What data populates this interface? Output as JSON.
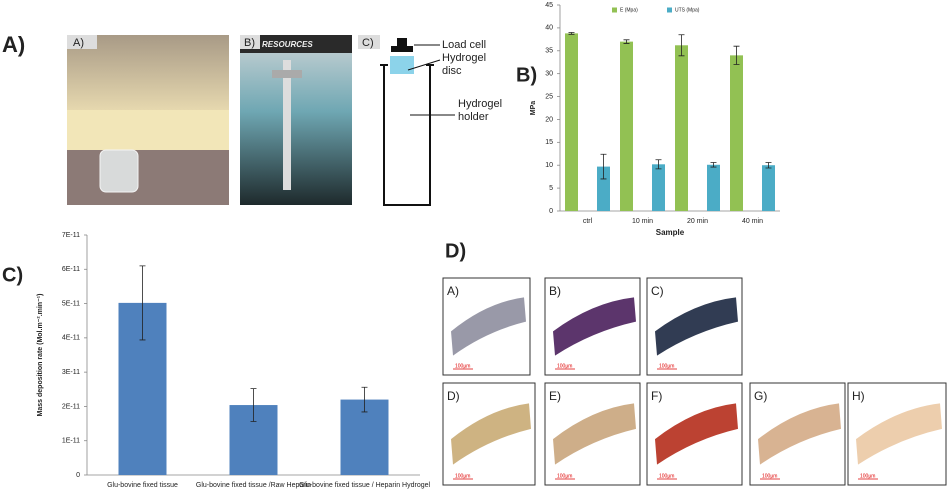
{
  "panels": [
    "A)",
    "B)",
    "C)",
    "D)"
  ],
  "photos": {
    "labels": [
      "A)",
      "B)",
      "C)"
    ],
    "banner": "RESOURCES"
  },
  "schematic": {
    "load_cell": "Load cell",
    "disc": [
      "Hydrogel",
      "disc"
    ],
    "holder": [
      "Hydrogel",
      "holder"
    ]
  },
  "micrographs": [
    {
      "label": "A)",
      "scale": "100µm"
    },
    {
      "label": "B)",
      "scale": "100µm"
    },
    {
      "label": "C)",
      "scale": "100µm"
    },
    {
      "label": "D)",
      "scale": "100µm"
    },
    {
      "label": "E)",
      "scale": "100µm"
    },
    {
      "label": "F)",
      "scale": "100µm"
    },
    {
      "label": "G)",
      "scale": "100µm"
    },
    {
      "label": "H)",
      "scale": "100µm"
    }
  ],
  "chart_data": [
    {
      "type": "bar",
      "ylabel": "MPa",
      "xlabel": "Sample",
      "categories": [
        "ctrl",
        "10 min",
        "20 min",
        "40 min"
      ],
      "series": [
        {
          "name": "E (Mpa)",
          "color": "#92c153",
          "values": [
            38.8,
            37,
            36.2,
            34
          ],
          "errors": [
            0.2,
            0.4,
            2.3,
            2
          ]
        },
        {
          "name": "UTS (Mpa)",
          "color": "#4bacc6",
          "values": [
            9.7,
            10.2,
            10.1,
            10
          ],
          "errors": [
            2.7,
            1,
            0.5,
            0.6
          ]
        }
      ],
      "ylim": [
        0,
        45
      ],
      "yticks": [
        0,
        5,
        10,
        15,
        20,
        25,
        30,
        35,
        40,
        45
      ],
      "legend": "top"
    },
    {
      "type": "bar",
      "ylabel": "Mass deposition rate (Mol.m⁻².min⁻¹)",
      "categories": [
        "Glu-bovine fixed tissue",
        "Glu-bovine fixed tissue /Raw Heparin",
        "Glu-bovine fixed tissue / Heparin Hydrogel"
      ],
      "series": [
        {
          "color": "#4f81bd",
          "values": [
            5.02e-11,
            2.04e-11,
            2.2e-11
          ],
          "errors": [
            1.08e-11,
            4.8e-12,
            3.6e-12
          ]
        }
      ],
      "ylim": [
        0,
        7e-11
      ],
      "yticks": [
        0,
        {
          "value": 1e-11,
          "label": "1E-11"
        },
        {
          "value": 2e-11,
          "label": "2E-11"
        },
        {
          "value": 3e-11,
          "label": "3E-11"
        },
        {
          "value": 4e-11,
          "label": "4E-11"
        },
        {
          "value": 5e-11,
          "label": "5E-11"
        },
        {
          "value": 6e-11,
          "label": "6E-11"
        },
        {
          "value": 7e-11,
          "label": "7E-11"
        }
      ]
    }
  ]
}
